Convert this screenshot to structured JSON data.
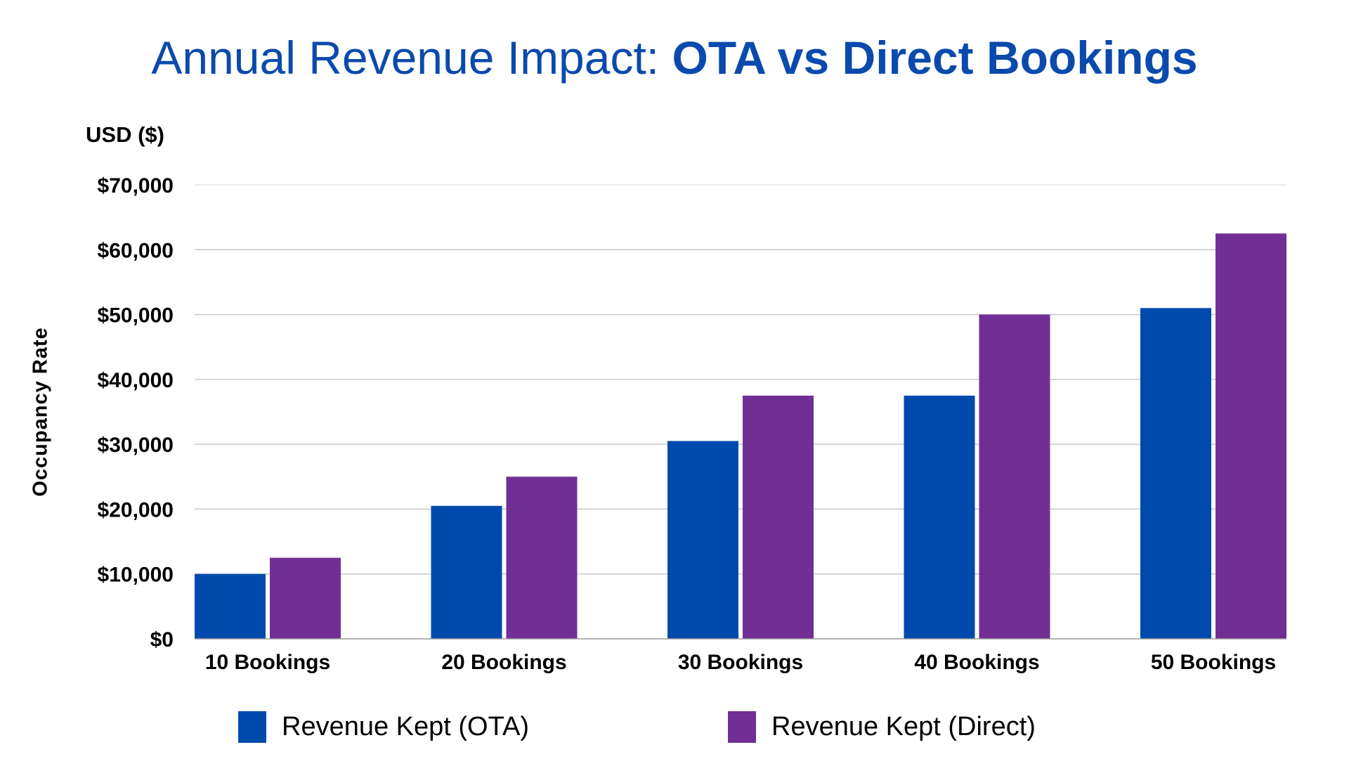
{
  "chart_data": {
    "type": "bar",
    "title_regular": "Annual Revenue Impact: ",
    "title_bold": "OTA vs Direct Bookings",
    "unit_label": "USD ($)",
    "ylabel": "Occupancy Rate",
    "xlabel": "",
    "categories": [
      "10 Bookings",
      "20 Bookings",
      "30 Bookings",
      "40 Bookings",
      "50 Bookings"
    ],
    "ylim": [
      0,
      70000
    ],
    "yticks": [
      0,
      10000,
      20000,
      30000,
      40000,
      50000,
      60000,
      70000
    ],
    "ytick_labels": [
      "$0",
      "$10,000",
      "$20,000",
      "$30,000",
      "$40,000",
      "$50,000",
      "$60,000",
      "$70,000"
    ],
    "grid": true,
    "legend_position": "bottom",
    "series": [
      {
        "name": "Revenue Kept (OTA)",
        "color": "#004AAD",
        "values": [
          10000,
          20500,
          30500,
          37500,
          51000
        ]
      },
      {
        "name": "Revenue Kept (Direct)",
        "color": "#712F95",
        "values": [
          12500,
          25000,
          37500,
          50000,
          62500
        ]
      }
    ],
    "title_color": "#0B4AAD"
  }
}
